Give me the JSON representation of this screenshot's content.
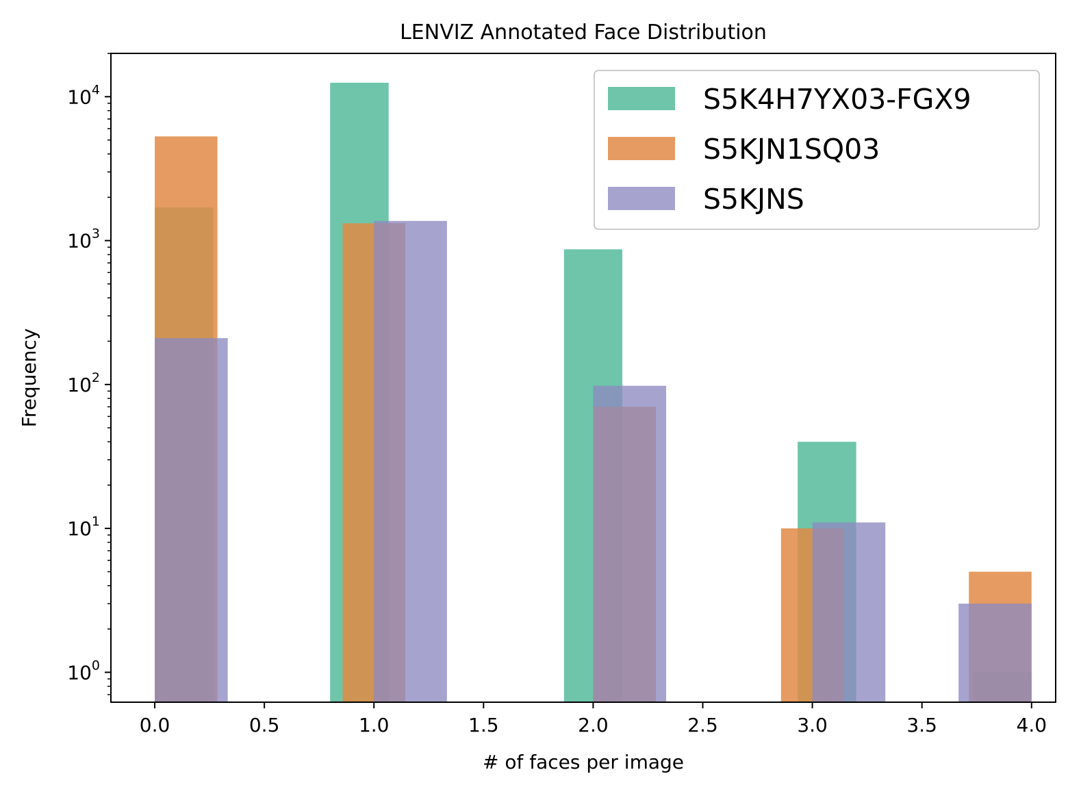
{
  "chart_data": {
    "type": "bar",
    "title": "LENVIZ Annotated Face Distribution",
    "xlabel": "# of faces per image",
    "ylabel": "Frequency",
    "yscale": "log",
    "xlim": [
      -0.2,
      4.11
    ],
    "ylim": [
      0.62,
      20000
    ],
    "x_ticks": [
      0.0,
      0.5,
      1.0,
      1.5,
      2.0,
      2.5,
      3.0,
      3.5,
      4.0
    ],
    "x_tick_labels": [
      "0.0",
      "0.5",
      "1.0",
      "1.5",
      "2.0",
      "2.5",
      "3.0",
      "3.5",
      "4.0"
    ],
    "y_ticks": [
      {
        "value": 1,
        "base": "10",
        "exp": "0"
      },
      {
        "value": 10,
        "base": "10",
        "exp": "1"
      },
      {
        "value": 100,
        "base": "10",
        "exp": "2"
      },
      {
        "value": 1000,
        "base": "10",
        "exp": "3"
      },
      {
        "value": 10000,
        "base": "10",
        "exp": "4"
      }
    ],
    "legend_position": "top-right",
    "series": [
      {
        "name": "S5K4H7YX03-FGX9",
        "color": "#66c2a5",
        "opacity": 0.95,
        "bars": [
          {
            "x0": 0.0,
            "x1": 0.267,
            "value": 1700
          },
          {
            "x0": 0.8,
            "x1": 1.067,
            "value": 12500
          },
          {
            "x0": 1.867,
            "x1": 2.133,
            "value": 870
          },
          {
            "x0": 2.933,
            "x1": 3.2,
            "value": 40
          },
          {
            "x0": 3.733,
            "x1": 4.0,
            "value": 1
          }
        ]
      },
      {
        "name": "S5KJN1SQ03",
        "color": "#e08a45",
        "opacity": 0.85,
        "bars": [
          {
            "x0": 0.0,
            "x1": 0.286,
            "value": 5300
          },
          {
            "x0": 0.857,
            "x1": 1.143,
            "value": 1320
          },
          {
            "x0": 2.0,
            "x1": 2.286,
            "value": 70
          },
          {
            "x0": 2.857,
            "x1": 3.143,
            "value": 10
          },
          {
            "x0": 3.714,
            "x1": 4.0,
            "value": 5
          }
        ]
      },
      {
        "name": "S5KJNS",
        "color": "#8d8bc0",
        "opacity": 0.78,
        "bars": [
          {
            "x0": 0.0,
            "x1": 0.333,
            "value": 210
          },
          {
            "x0": 1.0,
            "x1": 1.333,
            "value": 1370
          },
          {
            "x0": 2.0,
            "x1": 2.333,
            "value": 98
          },
          {
            "x0": 3.0,
            "x1": 3.333,
            "value": 11
          },
          {
            "x0": 3.667,
            "x1": 4.0,
            "value": 3
          }
        ]
      }
    ]
  }
}
